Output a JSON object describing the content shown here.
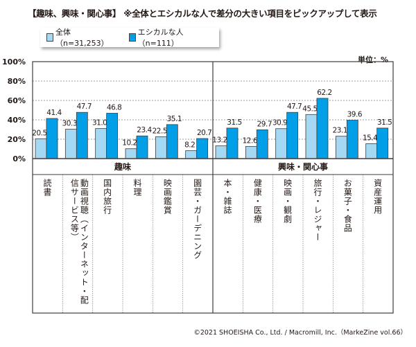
{
  "title": "【趣味、興味・関心事】 ※全体とエシカルな人で差分の大きい項目をピックアップして表示",
  "unit": "単位：%",
  "copyright": "©2021 SHOEISHA Co., Ltd. / Macromill, Inc.（MarkeZine vol.66）",
  "chart_data": {
    "type": "bar",
    "ylim": [
      0,
      100
    ],
    "yticks": [
      "0%",
      "20%",
      "40%",
      "60%",
      "80%",
      "100%"
    ],
    "grid": true,
    "legend_position": "top-left",
    "groups": [
      {
        "label": "趣味",
        "count": 6
      },
      {
        "label": "興味・関心事",
        "count": 6
      }
    ],
    "categories": [
      "読書",
      "動画視聴（インターネット・配信サービス等）",
      "国内旅行",
      "料理",
      "映画鑑賞",
      "園芸・ガーデニング",
      "本・雑誌",
      "健康・医療",
      "映画・観劇",
      "旅行・レジャー",
      "お菓子・食品",
      "資産運用"
    ],
    "series": [
      {
        "name": "全体（n=31,253）",
        "color": "#a5d8f3",
        "values": [
          20.5,
          30.3,
          31.0,
          10.2,
          22.5,
          8.2,
          13.2,
          12.6,
          30.9,
          45.5,
          23.1,
          15.4
        ],
        "labels": [
          "20.5",
          "30.3",
          "31.0",
          "10.2",
          "22.5",
          "8.2",
          "13.2",
          "12.6",
          "30.9",
          "45.5",
          "23.1",
          "15.4"
        ]
      },
      {
        "name": "エシカルな人（n=111）",
        "color": "#009fe8",
        "values": [
          41.4,
          47.7,
          46.8,
          23.4,
          35.1,
          20.7,
          31.5,
          29.7,
          47.7,
          62.2,
          39.6,
          31.5
        ],
        "labels": [
          "41.4",
          "47.7",
          "46.8",
          "23.4",
          "35.1",
          "20.7",
          "31.5",
          "29.7",
          "47.7",
          "62.2",
          "39.6",
          "31.5"
        ]
      }
    ]
  }
}
